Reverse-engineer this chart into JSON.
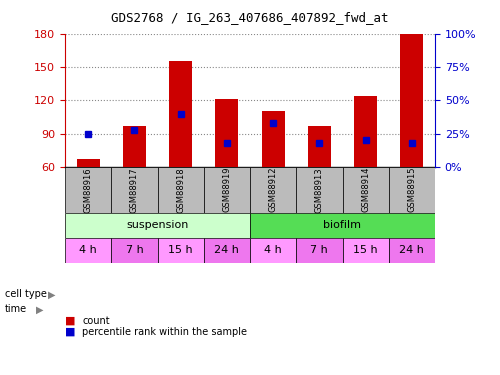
{
  "title": "GDS2768 / IG_263_407686_407892_fwd_at",
  "samples": [
    "GSM88916",
    "GSM88917",
    "GSM88918",
    "GSM88919",
    "GSM88912",
    "GSM88913",
    "GSM88914",
    "GSM88915"
  ],
  "counts": [
    67,
    97,
    155,
    121,
    110,
    97,
    124,
    180
  ],
  "percentile_ranks": [
    25,
    28,
    40,
    18,
    33,
    18,
    20,
    18
  ],
  "ylim_left": [
    60,
    180
  ],
  "ylim_right": [
    0,
    100
  ],
  "yticks_left": [
    60,
    90,
    120,
    150,
    180
  ],
  "yticks_right": [
    0,
    25,
    50,
    75,
    100
  ],
  "ytick_labels_right": [
    "0%",
    "25%",
    "50%",
    "75%",
    "100%"
  ],
  "bar_color": "#cc0000",
  "percentile_color": "#0000cc",
  "cell_type_colors": [
    "#ccffcc",
    "#55dd55"
  ],
  "time_color_light": "#ff99ff",
  "time_color_dark": "#ee77ee",
  "time_labels": [
    "4 h",
    "7 h",
    "15 h",
    "24 h",
    "4 h",
    "7 h",
    "15 h",
    "24 h"
  ],
  "time_alternating": [
    0,
    1,
    0,
    1,
    0,
    1,
    0,
    1
  ],
  "sample_bg_color": "#bbbbbb",
  "bar_bottom": 60,
  "bar_width": 0.5,
  "grid_color": "#888888",
  "left_tick_color": "#cc0000",
  "right_tick_color": "#0000cc",
  "legend_count_label": "count",
  "legend_percentile_label": "percentile rank within the sample",
  "title_fontsize": 9,
  "ylabel_left_fontsize": 8,
  "ylabel_right_fontsize": 8,
  "sample_fontsize": 6,
  "annotation_fontsize": 8,
  "legend_fontsize": 7
}
